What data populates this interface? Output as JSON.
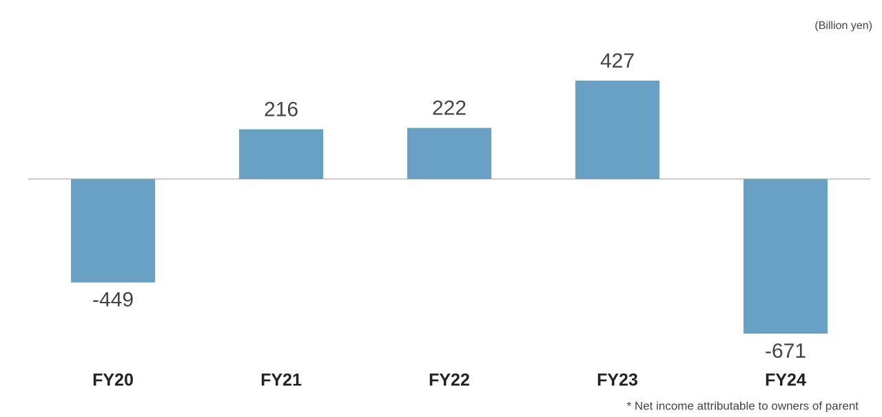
{
  "chart_data": {
    "type": "bar",
    "unit_label": "(Billion yen)",
    "footnote": "* Net income attributable to owners of parent",
    "categories": [
      "FY20",
      "FY21",
      "FY22",
      "FY23",
      "FY24"
    ],
    "values": [
      -449,
      216,
      222,
      427,
      -671
    ],
    "color": "#68a1c3"
  }
}
